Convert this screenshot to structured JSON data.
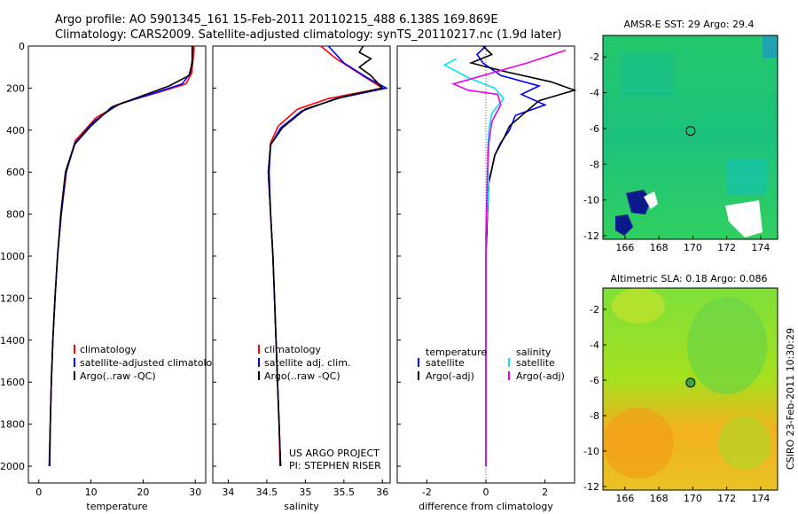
{
  "header": {
    "line1": "Argo profile: AO 5901345_161 15-Feb-2011 20110215_488 6.138S 169.869E",
    "line2": "Climatology: CARS2009. Satellite-adjusted climatology: synTS_20110217.nc (1.9d later)"
  },
  "footer_vertical": "CSIRO 23-Feb-2011 10:30:29",
  "colors": {
    "climatology": "#ff0000",
    "satellite": "#0000ff",
    "argo": "#000000",
    "satellite_salinity": "#00e5ee",
    "argo_salinity": "#ee00ee"
  },
  "chart_data": [
    {
      "type": "line",
      "xlabel": "temperature",
      "ylabel": "",
      "xlim": [
        -2,
        32
      ],
      "ylim": [
        2080,
        0
      ],
      "xticks": [
        0,
        10,
        20,
        30
      ],
      "yticks": [
        0,
        200,
        400,
        600,
        800,
        1000,
        1200,
        1400,
        1600,
        1800,
        2000
      ],
      "legend": {
        "position": "lower-center",
        "entries": [
          "climatology",
          "satellite-adjusted climatology",
          "Argo(..raw -QC)"
        ]
      },
      "series": [
        {
          "name": "climatology",
          "color": "#ff0000",
          "points": [
            [
              29.8,
              0
            ],
            [
              29.6,
              60
            ],
            [
              29.3,
              130
            ],
            [
              28.2,
              180
            ],
            [
              23,
              220
            ],
            [
              16,
              270
            ],
            [
              11,
              340
            ],
            [
              7,
              450
            ],
            [
              5.3,
              600
            ],
            [
              4.3,
              800
            ],
            [
              3.6,
              1000
            ],
            [
              3.1,
              1200
            ],
            [
              2.7,
              1400
            ],
            [
              2.4,
              1600
            ],
            [
              2.2,
              1800
            ],
            [
              2.1,
              2000
            ]
          ]
        },
        {
          "name": "satellite-adjusted climatology",
          "color": "#0000ff",
          "points": [
            [
              29.5,
              0
            ],
            [
              29.4,
              70
            ],
            [
              29,
              130
            ],
            [
              27.5,
              180
            ],
            [
              22,
              225
            ],
            [
              15,
              280
            ],
            [
              10.5,
              360
            ],
            [
              7,
              460
            ],
            [
              5.2,
              600
            ],
            [
              4.3,
              800
            ],
            [
              3.6,
              1000
            ],
            [
              3.1,
              1200
            ],
            [
              2.7,
              1400
            ],
            [
              2.4,
              1600
            ],
            [
              2.2,
              1800
            ],
            [
              2.1,
              2000
            ]
          ]
        },
        {
          "name": "Argo(..raw -QC)",
          "color": "#000000",
          "points": [
            [
              29.4,
              0
            ],
            [
              29.4,
              80
            ],
            [
              28.8,
              140
            ],
            [
              25,
              190
            ],
            [
              20,
              235
            ],
            [
              14,
              290
            ],
            [
              10,
              380
            ],
            [
              6.8,
              470
            ],
            [
              5.1,
              600
            ],
            [
              4.2,
              800
            ],
            [
              3.6,
              1000
            ],
            [
              3.1,
              1200
            ],
            [
              2.7,
              1400
            ],
            [
              2.4,
              1600
            ],
            [
              2.2,
              1800
            ],
            [
              2.0,
              2000
            ]
          ]
        }
      ]
    },
    {
      "type": "line",
      "xlabel": "salinity",
      "xlim": [
        33.8,
        36.1
      ],
      "ylim": [
        2080,
        0
      ],
      "xticks": [
        34,
        34.5,
        35,
        35.5,
        36
      ],
      "xtick_labels": [
        "34",
        "34.5",
        "35",
        "35.5",
        "36"
      ],
      "legend": {
        "position": "lower-center",
        "entries": [
          "climatology",
          "satellite adj. clim.",
          "Argo(..raw -QC)"
        ]
      },
      "annotations": [
        "US ARGO PROJECT",
        "PI: STEPHEN RISER"
      ],
      "series": [
        {
          "name": "climatology",
          "color": "#ff0000",
          "points": [
            [
              35.2,
              0
            ],
            [
              35.4,
              60
            ],
            [
              35.7,
              130
            ],
            [
              36.0,
              200
            ],
            [
              35.3,
              250
            ],
            [
              34.9,
              300
            ],
            [
              34.65,
              380
            ],
            [
              34.55,
              460
            ],
            [
              34.52,
              600
            ],
            [
              34.55,
              800
            ],
            [
              34.58,
              1000
            ],
            [
              34.6,
              1200
            ],
            [
              34.62,
              1400
            ],
            [
              34.64,
              1600
            ],
            [
              34.66,
              1800
            ],
            [
              34.67,
              2000
            ]
          ]
        },
        {
          "name": "satellite adj. clim.",
          "color": "#0000ff",
          "points": [
            [
              35.3,
              0
            ],
            [
              35.5,
              80
            ],
            [
              35.8,
              150
            ],
            [
              36.05,
              200
            ],
            [
              35.4,
              250
            ],
            [
              34.95,
              310
            ],
            [
              34.68,
              390
            ],
            [
              34.55,
              470
            ],
            [
              34.53,
              600
            ],
            [
              34.55,
              800
            ],
            [
              34.58,
              1000
            ],
            [
              34.6,
              1200
            ],
            [
              34.62,
              1400
            ],
            [
              34.64,
              1600
            ],
            [
              34.66,
              1800
            ],
            [
              34.68,
              2000
            ]
          ]
        },
        {
          "name": "Argo(..raw -QC)",
          "color": "#000000",
          "points": [
            [
              35.75,
              0
            ],
            [
              35.7,
              30
            ],
            [
              35.85,
              60
            ],
            [
              35.7,
              100
            ],
            [
              35.85,
              140
            ],
            [
              36.0,
              200
            ],
            [
              35.5,
              240
            ],
            [
              35.0,
              300
            ],
            [
              34.7,
              390
            ],
            [
              34.55,
              470
            ],
            [
              34.52,
              600
            ],
            [
              34.55,
              800
            ],
            [
              34.58,
              1000
            ],
            [
              34.6,
              1200
            ],
            [
              34.62,
              1400
            ],
            [
              34.64,
              1600
            ],
            [
              34.66,
              1800
            ],
            [
              34.68,
              2000
            ]
          ]
        }
      ]
    },
    {
      "type": "line",
      "xlabel": "difference from climatology",
      "xlim": [
        -3,
        3
      ],
      "ylim": [
        2080,
        0
      ],
      "xticks": [
        -2,
        0,
        2
      ],
      "legend": {
        "position": "lower-center",
        "columns": [
          "temperature",
          "salinity"
        ],
        "entries": [
          "satellite",
          "Argo(-adj)",
          "satellite",
          "Argo(-adj)"
        ]
      },
      "series": [
        {
          "name": "temperature satellite",
          "color": "#0000ff",
          "points": [
            [
              0,
              0
            ],
            [
              -0.3,
              40
            ],
            [
              -0.1,
              80
            ],
            [
              0.5,
              140
            ],
            [
              1.8,
              190
            ],
            [
              1.2,
              230
            ],
            [
              2.0,
              280
            ],
            [
              1.0,
              330
            ],
            [
              0.8,
              400
            ],
            [
              0.5,
              460
            ],
            [
              0.3,
              520
            ],
            [
              0.1,
              650
            ],
            [
              0.05,
              800
            ],
            [
              0,
              1000
            ],
            [
              0,
              1400
            ],
            [
              0,
              1800
            ],
            [
              0,
              2000
            ]
          ]
        },
        {
          "name": "temperature Argo(-adj)",
          "color": "#000000",
          "points": [
            [
              -0.1,
              0
            ],
            [
              0.2,
              40
            ],
            [
              -0.5,
              80
            ],
            [
              0.6,
              120
            ],
            [
              2.2,
              170
            ],
            [
              3.0,
              210
            ],
            [
              1.8,
              260
            ],
            [
              1.3,
              320
            ],
            [
              0.8,
              380
            ],
            [
              0.6,
              440
            ],
            [
              0.3,
              520
            ],
            [
              0.1,
              650
            ],
            [
              0.05,
              800
            ],
            [
              0,
              1000
            ],
            [
              0,
              1400
            ],
            [
              0,
              1800
            ],
            [
              0,
              2000
            ]
          ]
        },
        {
          "name": "salinity satellite",
          "color": "#00e5ee",
          "points": [
            [
              -1.0,
              60
            ],
            [
              -1.4,
              90
            ],
            [
              -0.6,
              150
            ],
            [
              0.3,
              200
            ],
            [
              0.6,
              250
            ],
            [
              0.2,
              320
            ],
            [
              0.1,
              400
            ],
            [
              0.05,
              520
            ],
            [
              0.1,
              650
            ],
            [
              0,
              900
            ],
            [
              0,
              1400
            ],
            [
              0,
              1800
            ],
            [
              0,
              2000
            ]
          ]
        },
        {
          "name": "salinity Argo(-adj)",
          "color": "#ee00ee",
          "points": [
            [
              2.7,
              20
            ],
            [
              1.4,
              80
            ],
            [
              -1.1,
              180
            ],
            [
              -0.6,
              210
            ],
            [
              0.4,
              230
            ],
            [
              0.5,
              280
            ],
            [
              0.2,
              360
            ],
            [
              0.1,
              460
            ],
            [
              0.05,
              600
            ],
            [
              0,
              900
            ],
            [
              0,
              1400
            ],
            [
              0,
              1800
            ],
            [
              0,
              2000
            ]
          ]
        }
      ]
    },
    {
      "type": "heatmap",
      "title": "AMSR-E SST: 29 Argo: 29.4",
      "xlim": [
        164.7,
        175
      ],
      "ylim": [
        -12.2,
        -0.8
      ],
      "xticks": [
        166,
        168,
        170,
        172,
        174
      ],
      "yticks": [
        -2,
        -4,
        -6,
        -8,
        -10,
        -12
      ],
      "marker": {
        "lon": 169.87,
        "lat": -6.14
      }
    },
    {
      "type": "heatmap",
      "title": "Altimetric SLA: 0.18 Argo: 0.086",
      "xlim": [
        164.7,
        175
      ],
      "ylim": [
        -12.2,
        -0.8
      ],
      "xticks": [
        166,
        168,
        170,
        172,
        174
      ],
      "yticks": [
        -2,
        -4,
        -6,
        -8,
        -10,
        -12
      ],
      "marker": {
        "lon": 169.87,
        "lat": -6.14
      }
    }
  ]
}
